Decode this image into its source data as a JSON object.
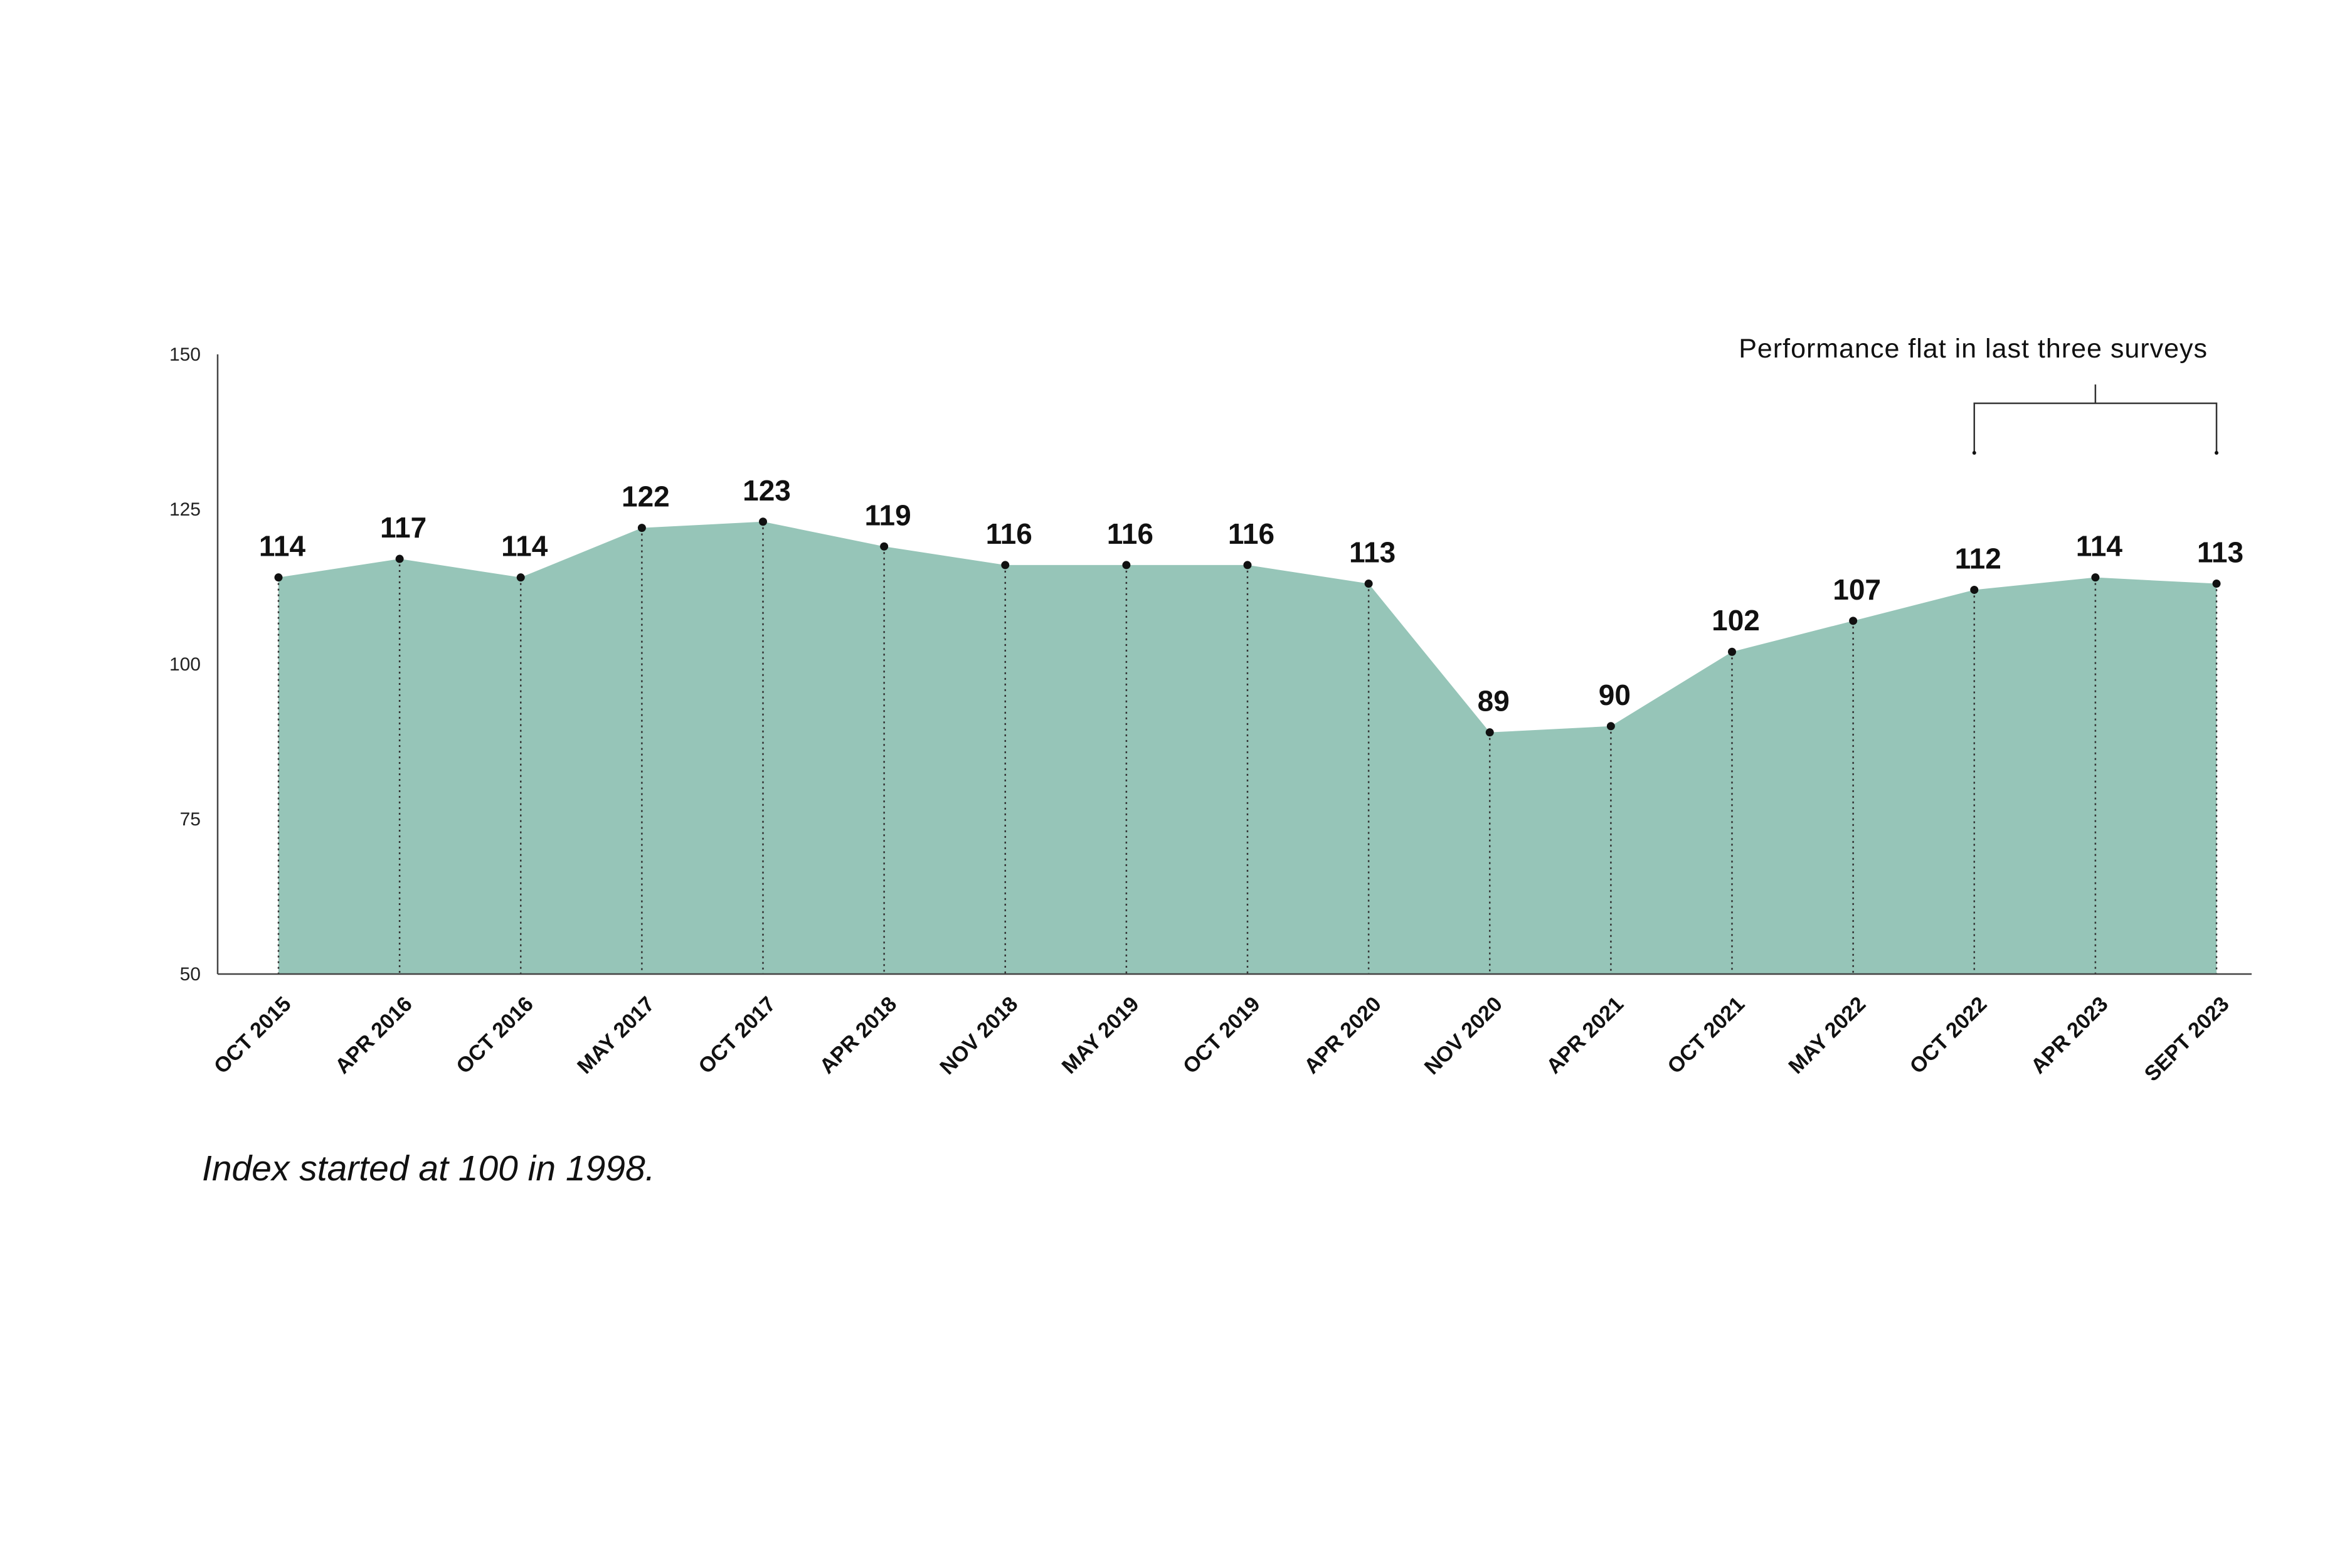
{
  "chart_data": {
    "type": "area",
    "title": "",
    "xlabel": "",
    "ylabel": "",
    "ylim": [
      50,
      150
    ],
    "yticks": [
      50,
      75,
      100,
      125,
      150
    ],
    "categories": [
      "OCT 2015",
      "APR 2016",
      "OCT 2016",
      "MAY 2017",
      "OCT 2017",
      "APR 2018",
      "NOV 2018",
      "MAY 2019",
      "OCT 2019",
      "APR 2020",
      "NOV 2020",
      "APR 2021",
      "OCT 2021",
      "MAY 2022",
      "OCT 2022",
      "APR 2023",
      "SEPT 2023"
    ],
    "values": [
      114,
      117,
      114,
      122,
      123,
      119,
      116,
      116,
      116,
      113,
      89,
      90,
      102,
      107,
      112,
      114,
      113
    ],
    "grid": false,
    "legend": "none",
    "fill_color": "#96c5b8",
    "annotation": {
      "text": "Performance flat in last three surveys",
      "from_category": "OCT 2022",
      "to_category": "SEPT 2023"
    }
  },
  "footnote": "Index started at 100 in 1998."
}
